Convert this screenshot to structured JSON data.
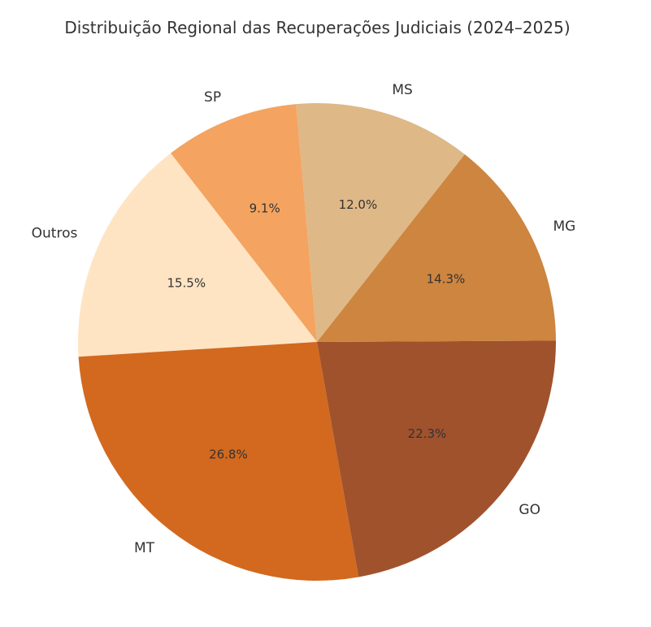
{
  "chart_data": {
    "type": "pie",
    "title": "Distribuição Regional das Recuperações Judiciais (2024–2025)",
    "start_angle_deg": 95,
    "direction": "counterclockwise",
    "slices": [
      {
        "label": "SP",
        "value": 9.1,
        "pct_label": "9.1%",
        "color": "#F4A460"
      },
      {
        "label": "Outros",
        "value": 15.5,
        "pct_label": "15.5%",
        "color": "#FFE4C4"
      },
      {
        "label": "MT",
        "value": 26.8,
        "pct_label": "26.8%",
        "color": "#D2691E"
      },
      {
        "label": "GO",
        "value": 22.3,
        "pct_label": "22.3%",
        "color": "#A0522D"
      },
      {
        "label": "MG",
        "value": 14.3,
        "pct_label": "14.3%",
        "color": "#CD853F"
      },
      {
        "label": "MS",
        "value": 12.0,
        "pct_label": "12.0%",
        "color": "#DEB887"
      }
    ]
  }
}
